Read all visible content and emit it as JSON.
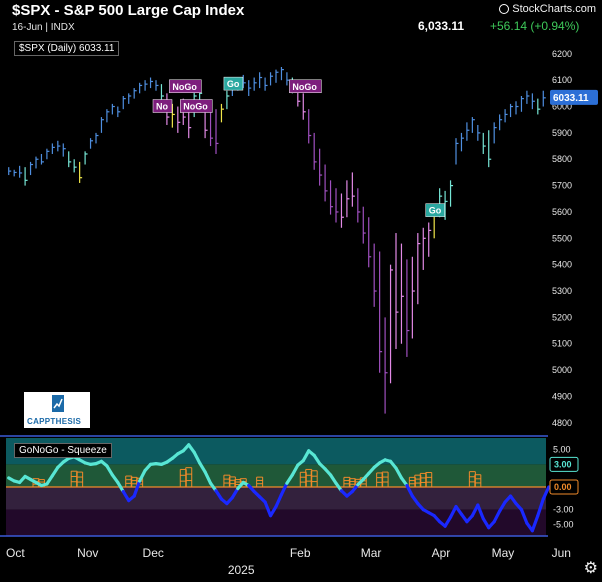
{
  "header": {
    "title": "$SPX - S&P 500 Large Cap Index",
    "subline": "16-Jun | INDX",
    "last_price": "6,033.11",
    "change": "+56.14 (+0.94%)",
    "brand": "StockCharts.com"
  },
  "legend": {
    "main": "$SPX (Daily) 6033.11",
    "indicator": "GoNoGo - Squeeze"
  },
  "logo": {
    "text": "CAPPTHESIS"
  },
  "colors": {
    "go_strong": "#4f8fe0",
    "go_weak": "#76e6d6",
    "nogo_strong": "#a050c0",
    "nogo_weak": "#e28ae6",
    "neutral": "#f0e64a",
    "oscillator_blue": "#1a28ff",
    "oscillator_cyan": "#58e6d4",
    "squeeze": "#f08a2a",
    "zero_line": "#f08a2a"
  },
  "chart_data": [
    {
      "type": "bar",
      "title": "$SPX - S&P 500 Large Cap Index",
      "ylim": [
        4750,
        6260
      ],
      "y_ticks": [
        4800,
        4900,
        5000,
        5100,
        5200,
        5300,
        5400,
        5500,
        5600,
        5700,
        5800,
        5900,
        6000,
        6100,
        6200
      ],
      "x_labels": [
        "Oct",
        "Nov",
        "Dec",
        "2025",
        "Feb",
        "Mar",
        "Apr",
        "May",
        "Jun"
      ],
      "last_value": "6033.11",
      "bars": [
        {
          "h": 5770,
          "l": 5740,
          "c": 5755,
          "s": "go_strong"
        },
        {
          "h": 5760,
          "l": 5735,
          "c": 5750,
          "s": "go_strong"
        },
        {
          "h": 5775,
          "l": 5730,
          "c": 5748,
          "s": "go_strong"
        },
        {
          "h": 5770,
          "l": 5700,
          "c": 5720,
          "s": "go_weak"
        },
        {
          "h": 5790,
          "l": 5740,
          "c": 5780,
          "s": "go_strong"
        },
        {
          "h": 5810,
          "l": 5765,
          "c": 5800,
          "s": "go_strong"
        },
        {
          "h": 5820,
          "l": 5780,
          "c": 5790,
          "s": "go_strong"
        },
        {
          "h": 5840,
          "l": 5800,
          "c": 5830,
          "s": "go_strong"
        },
        {
          "h": 5860,
          "l": 5820,
          "c": 5845,
          "s": "go_strong"
        },
        {
          "h": 5870,
          "l": 5830,
          "c": 5850,
          "s": "go_strong"
        },
        {
          "h": 5860,
          "l": 5810,
          "c": 5840,
          "s": "go_strong"
        },
        {
          "h": 5830,
          "l": 5770,
          "c": 5790,
          "s": "go_weak"
        },
        {
          "h": 5800,
          "l": 5750,
          "c": 5770,
          "s": "go_weak"
        },
        {
          "h": 5790,
          "l": 5710,
          "c": 5730,
          "s": "neutral"
        },
        {
          "h": 5830,
          "l": 5780,
          "c": 5820,
          "s": "go_weak"
        },
        {
          "h": 5880,
          "l": 5840,
          "c": 5870,
          "s": "go_strong"
        },
        {
          "h": 5900,
          "l": 5860,
          "c": 5890,
          "s": "go_strong"
        },
        {
          "h": 5960,
          "l": 5900,
          "c": 5950,
          "s": "go_strong"
        },
        {
          "h": 5990,
          "l": 5940,
          "c": 5980,
          "s": "go_strong"
        },
        {
          "h": 6010,
          "l": 5970,
          "c": 6000,
          "s": "go_strong"
        },
        {
          "h": 6000,
          "l": 5960,
          "c": 5980,
          "s": "go_strong"
        },
        {
          "h": 6040,
          "l": 5990,
          "c": 6030,
          "s": "go_strong"
        },
        {
          "h": 6050,
          "l": 6010,
          "c": 6040,
          "s": "go_strong"
        },
        {
          "h": 6070,
          "l": 6030,
          "c": 6060,
          "s": "go_strong"
        },
        {
          "h": 6090,
          "l": 6050,
          "c": 6080,
          "s": "go_strong"
        },
        {
          "h": 6100,
          "l": 6060,
          "c": 6085,
          "s": "go_strong"
        },
        {
          "h": 6110,
          "l": 6070,
          "c": 6095,
          "s": "go_strong"
        },
        {
          "h": 6100,
          "l": 6060,
          "c": 6080,
          "s": "go_strong"
        },
        {
          "h": 6085,
          "l": 6020,
          "c": 6040,
          "s": "go_weak"
        },
        {
          "h": 6050,
          "l": 5930,
          "c": 5960,
          "s": "nogo_weak"
        },
        {
          "h": 6010,
          "l": 5920,
          "c": 5970,
          "s": "neutral"
        },
        {
          "h": 6000,
          "l": 5900,
          "c": 5940,
          "s": "nogo_weak"
        },
        {
          "h": 6030,
          "l": 5930,
          "c": 5960,
          "s": "nogo_weak"
        },
        {
          "h": 6000,
          "l": 5880,
          "c": 5920,
          "s": "nogo_weak"
        },
        {
          "h": 6060,
          "l": 5960,
          "c": 6040,
          "s": "go_weak"
        },
        {
          "h": 6080,
          "l": 6010,
          "c": 6050,
          "s": "go_weak"
        },
        {
          "h": 6000,
          "l": 5880,
          "c": 5910,
          "s": "nogo_weak"
        },
        {
          "h": 5980,
          "l": 5850,
          "c": 5880,
          "s": "nogo_strong"
        },
        {
          "h": 5990,
          "l": 5820,
          "c": 5860,
          "s": "nogo_strong"
        },
        {
          "h": 6010,
          "l": 5940,
          "c": 5990,
          "s": "neutral"
        },
        {
          "h": 6060,
          "l": 5990,
          "c": 6040,
          "s": "go_weak"
        },
        {
          "h": 6090,
          "l": 6040,
          "c": 6080,
          "s": "go_strong"
        },
        {
          "h": 6110,
          "l": 6060,
          "c": 6100,
          "s": "go_strong"
        },
        {
          "h": 6120,
          "l": 6070,
          "c": 6090,
          "s": "go_strong"
        },
        {
          "h": 6100,
          "l": 6040,
          "c": 6070,
          "s": "go_strong"
        },
        {
          "h": 6110,
          "l": 6060,
          "c": 6090,
          "s": "go_strong"
        },
        {
          "h": 6130,
          "l": 6070,
          "c": 6110,
          "s": "go_strong"
        },
        {
          "h": 6110,
          "l": 6060,
          "c": 6080,
          "s": "go_strong"
        },
        {
          "h": 6130,
          "l": 6080,
          "c": 6115,
          "s": "go_strong"
        },
        {
          "h": 6140,
          "l": 6090,
          "c": 6130,
          "s": "go_strong"
        },
        {
          "h": 6150,
          "l": 6100,
          "c": 6140,
          "s": "go_strong"
        },
        {
          "h": 6130,
          "l": 6080,
          "c": 6100,
          "s": "go_strong"
        },
        {
          "h": 6110,
          "l": 6050,
          "c": 6080,
          "s": "go_weak"
        },
        {
          "h": 6080,
          "l": 6000,
          "c": 6020,
          "s": "nogo_weak"
        },
        {
          "h": 6050,
          "l": 5950,
          "c": 5980,
          "s": "nogo_weak"
        },
        {
          "h": 5990,
          "l": 5860,
          "c": 5890,
          "s": "nogo_strong"
        },
        {
          "h": 5900,
          "l": 5760,
          "c": 5790,
          "s": "nogo_strong"
        },
        {
          "h": 5840,
          "l": 5700,
          "c": 5740,
          "s": "nogo_strong"
        },
        {
          "h": 5780,
          "l": 5640,
          "c": 5680,
          "s": "nogo_strong"
        },
        {
          "h": 5720,
          "l": 5590,
          "c": 5620,
          "s": "nogo_strong"
        },
        {
          "h": 5690,
          "l": 5560,
          "c": 5600,
          "s": "nogo_strong"
        },
        {
          "h": 5670,
          "l": 5540,
          "c": 5580,
          "s": "nogo_weak"
        },
        {
          "h": 5720,
          "l": 5580,
          "c": 5650,
          "s": "nogo_weak"
        },
        {
          "h": 5750,
          "l": 5620,
          "c": 5660,
          "s": "nogo_weak"
        },
        {
          "h": 5690,
          "l": 5560,
          "c": 5600,
          "s": "nogo_strong"
        },
        {
          "h": 5620,
          "l": 5480,
          "c": 5520,
          "s": "nogo_strong"
        },
        {
          "h": 5580,
          "l": 5390,
          "c": 5430,
          "s": "nogo_strong"
        },
        {
          "h": 5480,
          "l": 5240,
          "c": 5300,
          "s": "nogo_strong"
        },
        {
          "h": 5450,
          "l": 4990,
          "c": 5070,
          "s": "nogo_strong"
        },
        {
          "h": 5200,
          "l": 4835,
          "c": 4990,
          "s": "nogo_strong"
        },
        {
          "h": 5400,
          "l": 4950,
          "c": 5380,
          "s": "nogo_weak"
        },
        {
          "h": 5520,
          "l": 5080,
          "c": 5220,
          "s": "nogo_weak"
        },
        {
          "h": 5480,
          "l": 5100,
          "c": 5280,
          "s": "nogo_weak"
        },
        {
          "h": 5420,
          "l": 5050,
          "c": 5150,
          "s": "nogo_strong"
        },
        {
          "h": 5430,
          "l": 5120,
          "c": 5300,
          "s": "nogo_weak"
        },
        {
          "h": 5520,
          "l": 5250,
          "c": 5480,
          "s": "nogo_weak"
        },
        {
          "h": 5540,
          "l": 5380,
          "c": 5500,
          "s": "nogo_weak"
        },
        {
          "h": 5560,
          "l": 5430,
          "c": 5530,
          "s": "nogo_weak"
        },
        {
          "h": 5620,
          "l": 5500,
          "c": 5600,
          "s": "neutral"
        },
        {
          "h": 5690,
          "l": 5580,
          "c": 5660,
          "s": "go_weak"
        },
        {
          "h": 5680,
          "l": 5570,
          "c": 5640,
          "s": "go_weak"
        },
        {
          "h": 5720,
          "l": 5620,
          "c": 5700,
          "s": "go_weak"
        },
        {
          "h": 5880,
          "l": 5780,
          "c": 5860,
          "s": "go_strong"
        },
        {
          "h": 5900,
          "l": 5830,
          "c": 5880,
          "s": "go_strong"
        },
        {
          "h": 5940,
          "l": 5870,
          "c": 5910,
          "s": "go_strong"
        },
        {
          "h": 5960,
          "l": 5900,
          "c": 5950,
          "s": "go_strong"
        },
        {
          "h": 5930,
          "l": 5870,
          "c": 5900,
          "s": "go_strong"
        },
        {
          "h": 5900,
          "l": 5820,
          "c": 5850,
          "s": "go_weak"
        },
        {
          "h": 5910,
          "l": 5770,
          "c": 5800,
          "s": "go_weak"
        },
        {
          "h": 5940,
          "l": 5860,
          "c": 5920,
          "s": "go_strong"
        },
        {
          "h": 5970,
          "l": 5910,
          "c": 5950,
          "s": "go_strong"
        },
        {
          "h": 5990,
          "l": 5940,
          "c": 5970,
          "s": "go_strong"
        },
        {
          "h": 6010,
          "l": 5960,
          "c": 6000,
          "s": "go_strong"
        },
        {
          "h": 6020,
          "l": 5970,
          "c": 6000,
          "s": "go_strong"
        },
        {
          "h": 6040,
          "l": 5980,
          "c": 6030,
          "s": "go_strong"
        },
        {
          "h": 6060,
          "l": 6010,
          "c": 6040,
          "s": "go_strong"
        },
        {
          "h": 6050,
          "l": 5990,
          "c": 6020,
          "s": "go_strong"
        },
        {
          "h": 6030,
          "l": 5970,
          "c": 5990,
          "s": "go_weak"
        },
        {
          "h": 6060,
          "l": 6000,
          "c": 6033,
          "s": "go_strong"
        }
      ],
      "signals": [
        {
          "label": "No",
          "bar": 27,
          "value": 6000,
          "type": "nogo"
        },
        {
          "label": "NoGo",
          "bar": 30,
          "value": 6075,
          "type": "nogo"
        },
        {
          "label": "NoGo",
          "bar": 32,
          "value": 6000,
          "type": "nogo"
        },
        {
          "label": "Go",
          "bar": 40,
          "value": 6085,
          "type": "go"
        },
        {
          "label": "NoGo",
          "bar": 52,
          "value": 6075,
          "type": "nogo"
        },
        {
          "label": "Go",
          "bar": 77,
          "value": 5605,
          "type": "go"
        }
      ]
    },
    {
      "type": "line",
      "title": "GoNoGo - Squeeze",
      "ylim": [
        -6.5,
        6.5
      ],
      "y_ticks": [
        5.0,
        3.0,
        0.0,
        -3.0,
        -5.0
      ],
      "y_tick_labels": [
        "5.00",
        "3.00",
        "0.00",
        "-3.00",
        "-5.00"
      ],
      "current_values": [
        "3.00",
        "0.00"
      ],
      "oscillator": [
        1.2,
        0.8,
        0.6,
        1.4,
        1.0,
        0.6,
        0.2,
        0.4,
        1.5,
        2.6,
        3.3,
        3.8,
        4.0,
        3.6,
        3.2,
        3.0,
        3.1,
        3.4,
        2.8,
        1.6,
        0.6,
        -0.6,
        -1.8,
        -1.2,
        0.8,
        2.2,
        3.0,
        3.1,
        3.0,
        3.3,
        3.8,
        4.4,
        4.8,
        5.6,
        4.6,
        3.2,
        2.0,
        0.5,
        -0.5,
        -1.6,
        -2.2,
        -1.4,
        -0.2,
        0.6,
        0.2,
        -0.6,
        -1.3,
        -2.0,
        -3.8,
        -2.6,
        -1.0,
        0.5,
        1.6,
        2.9,
        3.5,
        4.8,
        4.2,
        3.1,
        2.4,
        1.6,
        0.5,
        -0.5,
        -1.2,
        -0.6,
        0.3,
        1.0,
        1.8,
        2.6,
        3.2,
        3.6,
        3.4,
        2.5,
        1.2,
        0.2,
        -1.2,
        -2.2,
        -3.0,
        -3.4,
        -3.8,
        -4.6,
        -5.2,
        -4.0,
        -2.6,
        -3.6,
        -4.6,
        -3.8,
        -2.4,
        -4.2,
        -5.4,
        -4.6,
        -3.2,
        -2.0,
        -1.2,
        -2.2,
        -3.0,
        -4.8,
        -5.8,
        -3.8,
        -1.6,
        0.0
      ],
      "squeeze_bars": [
        5,
        6,
        12,
        13,
        22,
        23,
        24,
        32,
        33,
        40,
        41,
        42,
        43,
        46,
        54,
        55,
        56,
        62,
        63,
        64,
        65,
        68,
        69,
        74,
        75,
        76,
        77,
        85,
        86
      ]
    }
  ]
}
